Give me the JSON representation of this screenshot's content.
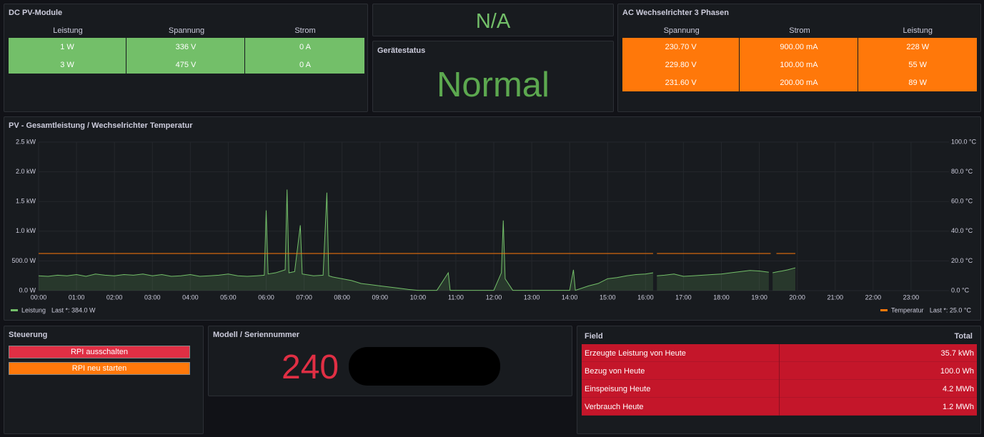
{
  "dc_panel": {
    "title": "DC PV-Module",
    "columns": [
      "Leistung",
      "Spannung",
      "Strom"
    ],
    "rows": [
      [
        "1 W",
        "336 V",
        "0 A"
      ],
      [
        "3 W",
        "475 V",
        "0 A"
      ]
    ]
  },
  "na_panel": {
    "value": "N/A"
  },
  "status_panel": {
    "title": "Gerätestatus",
    "value": "Normal"
  },
  "ac_panel": {
    "title": "AC Wechselrichter 3 Phasen",
    "columns": [
      "Spannung",
      "Strom",
      "Leistung"
    ],
    "rows": [
      [
        "230.70 V",
        "900.00 mA",
        "228 W"
      ],
      [
        "229.80 V",
        "100.00 mA",
        "55 W"
      ],
      [
        "231.60 V",
        "200.00 mA",
        "89 W"
      ]
    ]
  },
  "chart_data": {
    "type": "line",
    "title": "PV - Gesamtleistung / Wechselrichter Temperatur",
    "xlim": [
      0,
      24
    ],
    "xticks": [
      {
        "value": 0,
        "label": "00:00"
      },
      {
        "value": 1,
        "label": "01:00"
      },
      {
        "value": 2,
        "label": "02:00"
      },
      {
        "value": 3,
        "label": "03:00"
      },
      {
        "value": 4,
        "label": "04:00"
      },
      {
        "value": 5,
        "label": "05:00"
      },
      {
        "value": 6,
        "label": "06:00"
      },
      {
        "value": 7,
        "label": "07:00"
      },
      {
        "value": 8,
        "label": "08:00"
      },
      {
        "value": 9,
        "label": "09:00"
      },
      {
        "value": 10,
        "label": "10:00"
      },
      {
        "value": 11,
        "label": "11:00"
      },
      {
        "value": 12,
        "label": "12:00"
      },
      {
        "value": 13,
        "label": "13:00"
      },
      {
        "value": 14,
        "label": "14:00"
      },
      {
        "value": 15,
        "label": "15:00"
      },
      {
        "value": 16,
        "label": "16:00"
      },
      {
        "value": 17,
        "label": "17:00"
      },
      {
        "value": 18,
        "label": "18:00"
      },
      {
        "value": 19,
        "label": "19:00"
      },
      {
        "value": 20,
        "label": "20:00"
      },
      {
        "value": 21,
        "label": "21:00"
      },
      {
        "value": 22,
        "label": "22:00"
      },
      {
        "value": 23,
        "label": "23:00"
      }
    ],
    "ylim": [
      0,
      2500
    ],
    "yticks": [
      {
        "value": 0,
        "label": "0.0 W"
      },
      {
        "value": 500,
        "label": "500.0 W"
      },
      {
        "value": 1000,
        "label": "1.0 kW"
      },
      {
        "value": 1500,
        "label": "1.5 kW"
      },
      {
        "value": 2000,
        "label": "2.0 kW"
      },
      {
        "value": 2500,
        "label": "2.5 kW"
      }
    ],
    "y2lim": [
      0,
      100
    ],
    "y2ticks": [
      {
        "value": 0,
        "label": "0.0 °C"
      },
      {
        "value": 20,
        "label": "20.0 °C"
      },
      {
        "value": 40,
        "label": "40.0 °C"
      },
      {
        "value": 60,
        "label": "60.0 °C"
      },
      {
        "value": 80,
        "label": "80.0 °C"
      },
      {
        "value": 100,
        "label": "100.0 °C"
      }
    ],
    "grid": true,
    "series": [
      {
        "name": "Leistung",
        "color": "#73bf69",
        "legend_stat": "Last *: 384.0 W",
        "x": [
          0,
          0.25,
          0.5,
          0.75,
          1,
          1.25,
          1.5,
          1.75,
          2,
          2.25,
          2.5,
          2.75,
          3,
          3.25,
          3.5,
          3.75,
          4,
          4.25,
          4.5,
          4.75,
          5,
          5.25,
          5.5,
          5.75,
          5.95,
          6,
          6.05,
          6.25,
          6.5,
          6.55,
          6.6,
          6.75,
          6.9,
          6.95,
          7.25,
          7.5,
          7.6,
          7.65,
          7.75,
          8,
          8.25,
          8.5,
          8.75,
          9,
          9.25,
          9.5,
          9.75,
          10,
          10.5,
          10.8,
          10.85,
          11,
          11.5,
          12,
          12.2,
          12.25,
          12.3,
          12.5,
          13,
          13.5,
          14,
          14.1,
          14.15,
          14.5,
          14.75,
          15,
          15.25,
          15.5,
          15.75,
          16,
          16.2,
          16.25,
          16.3,
          16.5,
          16.75,
          17,
          17.25,
          17.5,
          17.75,
          18,
          18.25,
          18.5,
          18.75,
          19,
          19.25,
          19.3,
          19.35,
          19.5,
          19.6,
          19.75,
          19.95
        ],
        "values": [
          250,
          240,
          260,
          250,
          270,
          240,
          280,
          260,
          250,
          270,
          260,
          280,
          250,
          270,
          240,
          250,
          270,
          240,
          250,
          260,
          280,
          250,
          240,
          250,
          260,
          1350,
          280,
          300,
          350,
          1700,
          300,
          320,
          1100,
          280,
          250,
          260,
          1650,
          250,
          230,
          200,
          170,
          120,
          100,
          80,
          60,
          40,
          20,
          5,
          5,
          300,
          5,
          5,
          5,
          5,
          300,
          1180,
          200,
          5,
          5,
          5,
          5,
          350,
          5,
          80,
          120,
          200,
          220,
          250,
          270,
          280,
          300,
          null,
          250,
          260,
          280,
          240,
          250,
          260,
          270,
          280,
          300,
          320,
          340,
          330,
          310,
          null,
          300,
          320,
          330,
          350,
          384
        ]
      },
      {
        "name": "Temperatur",
        "color": "#ff780a",
        "axis": "y2",
        "legend_stat": "Last *: 25.0 °C",
        "x": [
          0,
          16.2,
          16.25,
          16.3,
          19.3,
          19.4,
          19.45,
          19.95
        ],
        "values": [
          25,
          25,
          null,
          25,
          25,
          null,
          25,
          25
        ]
      }
    ]
  },
  "control_panel": {
    "title": "Steuerung",
    "buttons": [
      "RPI ausschalten",
      "RPI neu starten"
    ]
  },
  "model_panel": {
    "title": "Modell / Seriennummer",
    "value": "240"
  },
  "field_panel": {
    "columns": [
      "Field",
      "Total"
    ],
    "rows": [
      [
        "Erzeugte Leistung von Heute",
        "35.7 kWh"
      ],
      [
        "Bezug von Heute",
        "100.0 Wh"
      ],
      [
        "Einspeisung Heute",
        "4.2 MWh"
      ],
      [
        "Verbrauch Heute",
        "1.2 MWh"
      ]
    ]
  }
}
